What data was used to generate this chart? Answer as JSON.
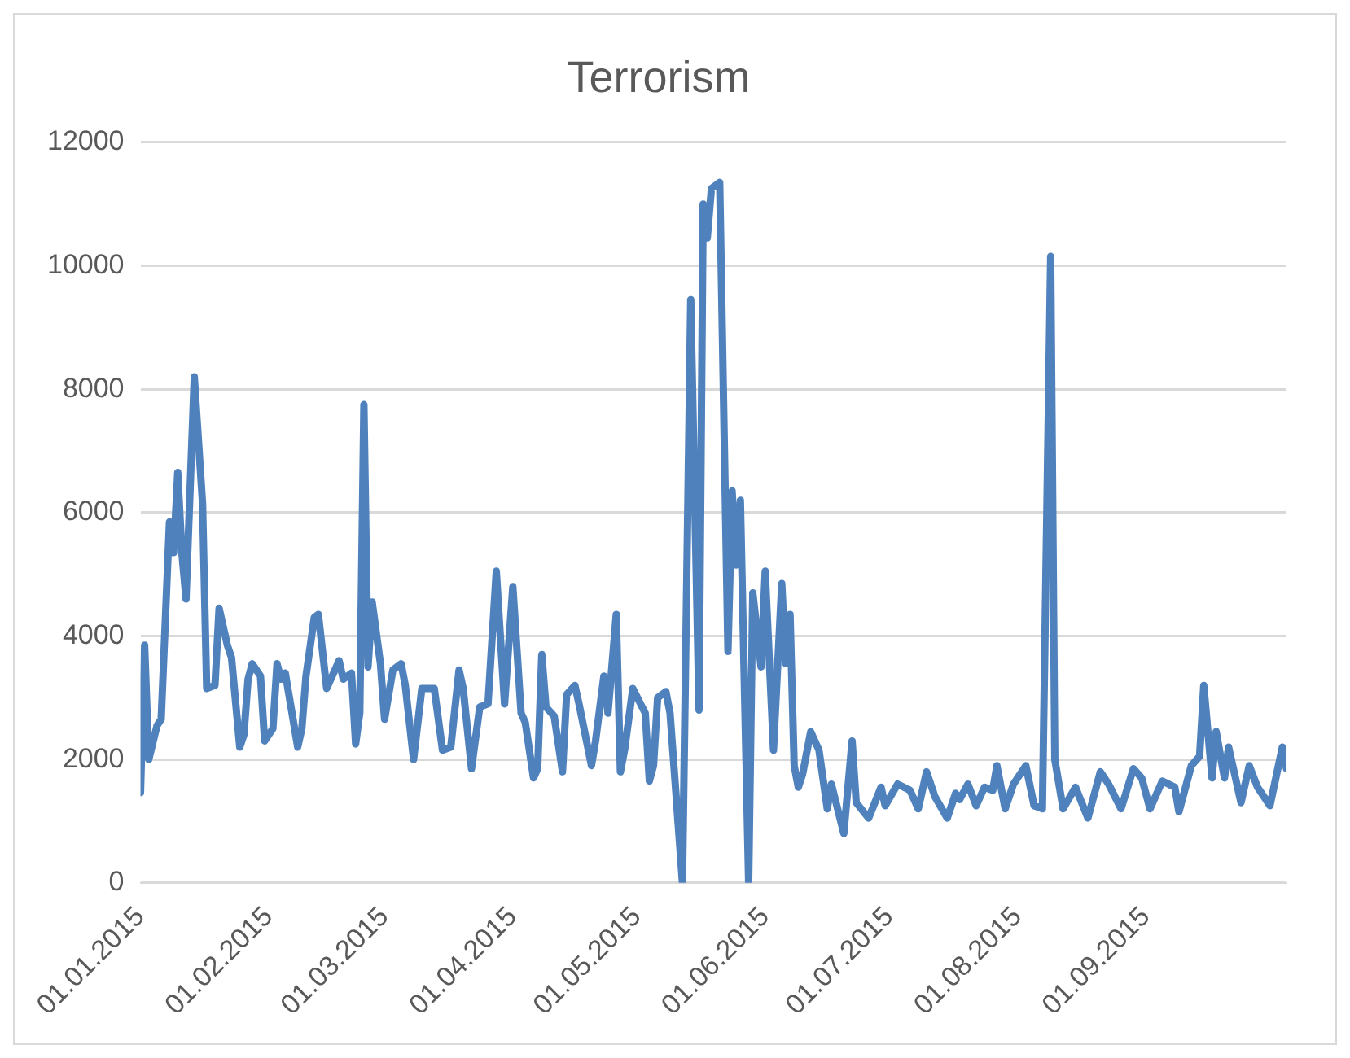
{
  "chart_data": {
    "type": "line",
    "title": "Terrorism",
    "x": [
      "2015-01-01",
      "2015-01-02",
      "2015-01-03",
      "2015-01-05",
      "2015-01-06",
      "2015-01-08",
      "2015-01-09",
      "2015-01-10",
      "2015-01-11",
      "2015-01-12",
      "2015-01-14",
      "2015-01-16",
      "2015-01-17",
      "2015-01-19",
      "2015-01-20",
      "2015-01-22",
      "2015-01-23",
      "2015-01-25",
      "2015-01-26",
      "2015-01-27",
      "2015-01-28",
      "2015-01-30",
      "2015-01-31",
      "2015-02-02",
      "2015-02-03",
      "2015-02-04",
      "2015-02-05",
      "2015-02-08",
      "2015-02-09",
      "2015-02-10",
      "2015-02-12",
      "2015-02-13",
      "2015-02-15",
      "2015-02-18",
      "2015-02-19",
      "2015-02-21",
      "2015-02-22",
      "2015-02-23",
      "2015-02-24",
      "2015-02-25",
      "2015-02-26",
      "2015-02-28",
      "2015-03-01",
      "2015-03-03",
      "2015-03-05",
      "2015-03-06",
      "2015-03-08",
      "2015-03-10",
      "2015-03-13",
      "2015-03-15",
      "2015-03-17",
      "2015-03-19",
      "2015-03-20",
      "2015-03-22",
      "2015-03-24",
      "2015-03-26",
      "2015-03-28",
      "2015-03-30",
      "2015-04-01",
      "2015-04-03",
      "2015-04-04",
      "2015-04-06",
      "2015-04-07",
      "2015-04-08",
      "2015-04-09",
      "2015-04-11",
      "2015-04-13",
      "2015-04-14",
      "2015-04-16",
      "2015-04-17",
      "2015-04-20",
      "2015-04-21",
      "2015-04-23",
      "2015-04-24",
      "2015-04-26",
      "2015-04-27",
      "2015-04-28",
      "2015-04-30",
      "2015-05-03",
      "2015-05-04",
      "2015-05-05",
      "2015-05-06",
      "2015-05-08",
      "2015-05-09",
      "2015-05-12",
      "2015-05-14",
      "2015-05-16",
      "2015-05-17",
      "2015-05-18",
      "2015-05-19",
      "2015-05-21",
      "2015-05-23",
      "2015-05-24",
      "2015-05-25",
      "2015-05-26",
      "2015-05-28",
      "2015-05-29",
      "2015-05-31",
      "2015-06-01",
      "2015-06-03",
      "2015-06-05",
      "2015-06-06",
      "2015-06-07",
      "2015-06-08",
      "2015-06-09",
      "2015-06-10",
      "2015-06-12",
      "2015-06-14",
      "2015-06-16",
      "2015-06-17",
      "2015-06-20",
      "2015-06-22",
      "2015-06-23",
      "2015-06-26",
      "2015-06-29",
      "2015-06-30",
      "2015-07-03",
      "2015-07-06",
      "2015-07-08",
      "2015-07-10",
      "2015-07-12",
      "2015-07-15",
      "2015-07-17",
      "2015-07-18",
      "2015-07-20",
      "2015-07-22",
      "2015-07-24",
      "2015-07-26",
      "2015-07-27",
      "2015-07-29",
      "2015-07-31",
      "2015-08-03",
      "2015-08-05",
      "2015-08-07",
      "2015-08-09",
      "2015-08-10",
      "2015-08-12",
      "2015-08-15",
      "2015-08-18",
      "2015-08-21",
      "2015-08-23",
      "2015-08-26",
      "2015-08-29",
      "2015-08-31",
      "2015-09-02",
      "2015-09-05",
      "2015-09-08",
      "2015-09-09",
      "2015-09-12",
      "2015-09-14",
      "2015-09-15",
      "2015-09-17",
      "2015-09-18",
      "2015-09-20",
      "2015-09-21",
      "2015-09-24",
      "2015-09-26",
      "2015-09-28",
      "2015-10-01",
      "2015-10-04",
      "2015-10-05"
    ],
    "series": [
      {
        "color": "#4f81bd",
        "values": [
          1460,
          3850,
          2000,
          2550,
          2650,
          5850,
          5350,
          6650,
          5350,
          4600,
          8200,
          6150,
          3150,
          3200,
          4450,
          3850,
          3650,
          2200,
          2400,
          3300,
          3550,
          3350,
          2300,
          2500,
          3550,
          3300,
          3400,
          2200,
          2500,
          3350,
          4300,
          4350,
          3150,
          3600,
          3300,
          3400,
          2250,
          2750,
          7750,
          3500,
          4550,
          3550,
          2650,
          3450,
          3550,
          3200,
          2000,
          3150,
          3150,
          2150,
          2200,
          3450,
          3150,
          1850,
          2850,
          2900,
          5050,
          2900,
          4800,
          2750,
          2600,
          1700,
          1850,
          3700,
          2850,
          2700,
          1800,
          3050,
          3200,
          2900,
          1900,
          2300,
          3350,
          2750,
          4350,
          1800,
          2150,
          3150,
          2750,
          1650,
          1900,
          3000,
          3100,
          2750,
          0,
          9450,
          2800,
          11000,
          10450,
          11250,
          11350,
          3750,
          6350,
          5150,
          6200,
          0,
          4700,
          3500,
          5050,
          2150,
          4850,
          3550,
          4350,
          1900,
          1550,
          1750,
          2450,
          2150,
          1200,
          1600,
          800,
          2300,
          1300,
          1050,
          1550,
          1250,
          1600,
          1500,
          1200,
          1800,
          1400,
          1050,
          1450,
          1350,
          1600,
          1250,
          1550,
          1500,
          1900,
          1200,
          1600,
          1900,
          1250,
          1200,
          10150,
          2000,
          1200,
          1550,
          1050,
          1800,
          1600,
          1200,
          1850,
          1700,
          1200,
          1650,
          1550,
          1150,
          1900,
          2050,
          3200,
          1700,
          2450,
          1700,
          2200,
          1300,
          1900,
          1550,
          1250,
          2200,
          1850
        ]
      }
    ],
    "xlim": [
      "2015-01-01",
      "2015-10-05"
    ],
    "xticks": [
      {
        "value": "2015-01-01",
        "label": "01.01.2015"
      },
      {
        "value": "2015-02-01",
        "label": "01.02.2015"
      },
      {
        "value": "2015-03-01",
        "label": "01.03.2015"
      },
      {
        "value": "2015-04-01",
        "label": "01.04.2015"
      },
      {
        "value": "2015-05-01",
        "label": "01.05.2015"
      },
      {
        "value": "2015-06-01",
        "label": "01.06.2015"
      },
      {
        "value": "2015-07-01",
        "label": "01.07.2015"
      },
      {
        "value": "2015-08-01",
        "label": "01.08.2015"
      },
      {
        "value": "2015-09-01",
        "label": "01.09.2015"
      }
    ],
    "ylim": [
      0,
      12000
    ],
    "yticks": [
      0,
      2000,
      4000,
      6000,
      8000,
      10000,
      12000
    ],
    "grid": "y",
    "legend": false,
    "marker": "none",
    "line_style": "solid"
  }
}
